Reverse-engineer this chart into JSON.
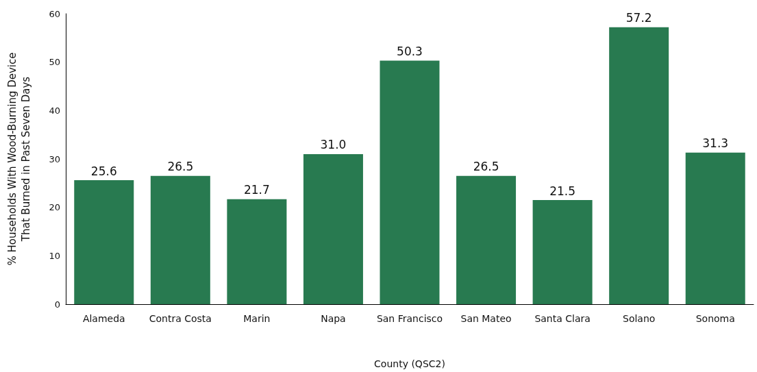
{
  "chart_data": {
    "type": "bar",
    "xlabel": "County (QSC2)",
    "ylabel": "% Households With Wood-Burning Device\nThat Burned in Past Seven Days",
    "categories": [
      "Alameda",
      "Contra Costa",
      "Marin",
      "Napa",
      "San Francisco",
      "San Mateo",
      "Santa Clara",
      "Solano",
      "Sonoma"
    ],
    "values": [
      25.6,
      26.5,
      21.7,
      31.0,
      50.3,
      26.5,
      21.5,
      57.2,
      31.3
    ],
    "color": "#287a50",
    "ylim": [
      0,
      60
    ],
    "yticks": [
      0,
      10,
      20,
      30,
      40,
      50,
      60
    ],
    "value_labels": [
      "25.6",
      "26.5",
      "21.7",
      "31.0",
      "50.3",
      "26.5",
      "21.5",
      "57.2",
      "31.3"
    ],
    "grid": false
  }
}
